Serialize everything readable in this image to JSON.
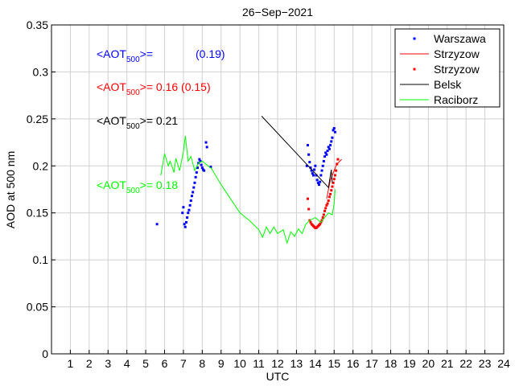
{
  "chart_data": {
    "type": "scatter",
    "title": "26−Sep−2021",
    "xlabel": "UTC",
    "ylabel": "AOD at 500 nm",
    "xlim": [
      0,
      24
    ],
    "ylim": [
      0,
      0.35
    ],
    "x_ticks": [
      1,
      2,
      3,
      4,
      5,
      6,
      7,
      8,
      9,
      10,
      11,
      12,
      13,
      14,
      15,
      16,
      17,
      18,
      19,
      20,
      21,
      22,
      23,
      24
    ],
    "y_ticks": [
      0,
      0.05,
      0.1,
      0.15,
      0.2,
      0.25,
      0.3,
      0.35
    ],
    "y_tick_labels": [
      "0",
      "0.05",
      "0.1",
      "0.15",
      "0.2",
      "0.25",
      "0.3",
      "0.35"
    ],
    "grid": true,
    "legend_position": "top-right",
    "annotations": [
      {
        "prefix": "<AOT",
        "sub": "500",
        "suffix": ">=",
        "value": "",
        "extra": "(0.19)",
        "color": "#0000ff"
      },
      {
        "prefix": "<AOT",
        "sub": "500",
        "suffix": ">=",
        "value": "0.16",
        "extra": "(0.15)",
        "color": "#ff0000"
      },
      {
        "prefix": "<AOT",
        "sub": "500",
        "suffix": ">=",
        "value": "0.21",
        "extra": "",
        "color": "#000000"
      },
      {
        "prefix": "<AOT",
        "sub": "500",
        "suffix": ">=",
        "value": "0.18",
        "extra": "",
        "color": "#00ff00"
      }
    ],
    "series": [
      {
        "name": "Warszawa",
        "style": "markers",
        "color": "#0000ff",
        "x": [
          5.6,
          6.95,
          7.0,
          7.05,
          7.1,
          7.15,
          7.2,
          7.25,
          7.3,
          7.35,
          7.4,
          7.45,
          7.5,
          7.55,
          7.6,
          7.65,
          7.7,
          7.75,
          7.8,
          7.85,
          7.9,
          7.95,
          8.0,
          8.05,
          8.1,
          8.2,
          8.25,
          8.45,
          13.55,
          13.6,
          13.65,
          13.7,
          13.75,
          13.8,
          13.85,
          13.9,
          13.95,
          14.0,
          14.05,
          14.1,
          14.15,
          14.2,
          14.25,
          14.3,
          14.35,
          14.4,
          14.45,
          14.5,
          14.55,
          14.6,
          14.65,
          14.7,
          14.75,
          14.8,
          14.85,
          14.9,
          14.95,
          15.0,
          15.05
        ],
        "y": [
          0.138,
          0.15,
          0.156,
          0.138,
          0.135,
          0.14,
          0.145,
          0.15,
          0.153,
          0.158,
          0.163,
          0.168,
          0.172,
          0.177,
          0.182,
          0.188,
          0.193,
          0.198,
          0.203,
          0.207,
          0.205,
          0.201,
          0.198,
          0.196,
          0.195,
          0.225,
          0.22,
          0.199,
          0.2,
          0.222,
          0.212,
          0.204,
          0.198,
          0.195,
          0.192,
          0.19,
          0.196,
          0.2,
          0.19,
          0.185,
          0.182,
          0.18,
          0.183,
          0.19,
          0.195,
          0.2,
          0.205,
          0.21,
          0.214,
          0.212,
          0.216,
          0.22,
          0.218,
          0.222,
          0.226,
          0.23,
          0.238,
          0.24,
          0.236
        ]
      },
      {
        "name": "Strzyzow",
        "style": "line",
        "color": "#ff0000",
        "x": [
          14.6,
          14.7,
          14.8,
          14.9,
          15.0,
          15.1,
          15.2,
          15.3,
          15.4
        ],
        "y": [
          0.165,
          0.175,
          0.185,
          0.19,
          0.195,
          0.2,
          0.203,
          0.205,
          0.207
        ]
      },
      {
        "name": "Strzyzow",
        "style": "markers",
        "color": "#ff0000",
        "x": [
          13.6,
          13.65,
          13.7,
          13.75,
          13.8,
          13.85,
          13.9,
          13.95,
          14.0,
          14.05,
          14.1,
          14.15,
          14.2,
          14.25,
          14.3,
          14.35,
          14.4,
          14.45,
          14.5,
          14.55,
          14.6,
          14.65,
          14.7,
          14.75,
          14.8,
          14.85,
          14.9,
          14.95,
          15.0,
          15.05,
          15.1,
          15.15,
          15.2
        ],
        "y": [
          0.165,
          0.154,
          0.142,
          0.14,
          0.138,
          0.137,
          0.136,
          0.135,
          0.134,
          0.134,
          0.135,
          0.136,
          0.137,
          0.138,
          0.14,
          0.142,
          0.145,
          0.148,
          0.152,
          0.155,
          0.158,
          0.16,
          0.163,
          0.167,
          0.17,
          0.174,
          0.178,
          0.182,
          0.186,
          0.19,
          0.195,
          0.202,
          0.207
        ]
      },
      {
        "name": "Belsk",
        "style": "line",
        "color": "#000000",
        "x": [
          11.15,
          14.7,
          14.85,
          14.9
        ],
        "y": [
          0.253,
          0.177,
          0.196,
          0.182
        ]
      },
      {
        "name": "Raciborz",
        "style": "line",
        "color": "#00ff00",
        "x": [
          5.8,
          6.0,
          6.2,
          6.3,
          6.5,
          6.6,
          6.8,
          7.0,
          7.1,
          7.25,
          7.4,
          7.6,
          7.8,
          8.0,
          8.5,
          9.0,
          9.5,
          10.0,
          10.5,
          11.0,
          11.2,
          11.4,
          11.6,
          11.8,
          12.0,
          12.3,
          12.5,
          12.7,
          12.9,
          13.1,
          13.3,
          13.5,
          13.7,
          14.0,
          14.3,
          14.5,
          14.7,
          14.9,
          15.0,
          15.05
        ],
        "y": [
          0.19,
          0.213,
          0.2,
          0.205,
          0.193,
          0.208,
          0.195,
          0.215,
          0.232,
          0.205,
          0.21,
          0.195,
          0.203,
          0.205,
          0.197,
          0.18,
          0.165,
          0.15,
          0.142,
          0.132,
          0.124,
          0.135,
          0.128,
          0.135,
          0.128,
          0.132,
          0.118,
          0.13,
          0.125,
          0.133,
          0.128,
          0.138,
          0.142,
          0.145,
          0.14,
          0.145,
          0.15,
          0.148,
          0.16,
          0.175
        ]
      }
    ]
  }
}
